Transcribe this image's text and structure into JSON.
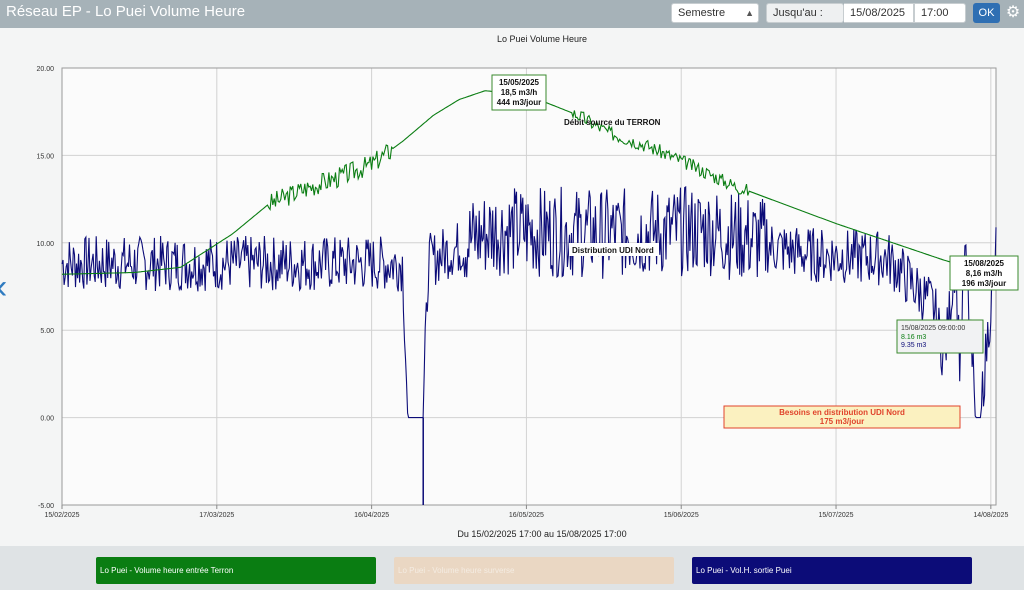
{
  "app": {
    "title": "Réseau EP - Lo Puei Volume Heure"
  },
  "toolbar": {
    "period": "Semestre",
    "until_label": "Jusqu'au :",
    "date": "15/08/2025",
    "time": "17:00",
    "ok_label": "OK",
    "settings_icon": "gear-icon"
  },
  "nav": {
    "back_icon": "chevron-left-icon"
  },
  "chart_data": {
    "type": "line",
    "title": "Lo Puei Volume Heure",
    "xlabel": "Du 15/02/2025 17:00 au 15/08/2025 17:00",
    "ylabel": "",
    "x_start": "2025-02-15",
    "x_end": "2025-08-15",
    "ylim": [
      -5,
      20
    ],
    "y_ticks": [
      "20.00",
      "15.00",
      "10.00",
      "5.00",
      "0.00",
      "-5.00"
    ],
    "y_tick_values": [
      20,
      15,
      10,
      5,
      0,
      -5
    ],
    "x_ticks": [
      {
        "date": "2025-02-15",
        "label": "15/02/2025"
      },
      {
        "date": "2025-03-17",
        "label": "17/03/2025"
      },
      {
        "date": "2025-04-16",
        "label": "16/04/2025"
      },
      {
        "date": "2025-05-16",
        "label": "16/05/2025"
      },
      {
        "date": "2025-06-15",
        "label": "15/06/2025"
      },
      {
        "date": "2025-07-15",
        "label": "15/07/2025"
      },
      {
        "date": "2025-08-14",
        "label": "14/08/2025"
      }
    ],
    "grid": true,
    "series": [
      {
        "name": "Lo Puei - Volume heure entrée Terron",
        "color": "#0a7d12",
        "x": [
          "2025-02-15",
          "2025-03-01",
          "2025-03-10",
          "2025-03-20",
          "2025-03-27",
          "2025-04-03",
          "2025-04-10",
          "2025-04-16",
          "2025-04-22",
          "2025-04-28",
          "2025-05-03",
          "2025-05-08",
          "2025-05-15",
          "2025-05-20",
          "2025-05-26",
          "2025-06-01",
          "2025-06-08",
          "2025-06-15",
          "2025-06-25",
          "2025-07-05",
          "2025-07-15",
          "2025-07-25",
          "2025-08-05",
          "2025-08-15"
        ],
        "y": [
          8.2,
          8.3,
          8.6,
          10.5,
          12.2,
          13.1,
          13.8,
          14.5,
          15.8,
          17.3,
          18.2,
          18.7,
          18.5,
          18.0,
          17.3,
          16.3,
          15.6,
          14.7,
          13.3,
          12.2,
          11.1,
          10.1,
          9.0,
          8.16
        ]
      },
      {
        "name": "Lo Puei - Volume heure surverse",
        "color": "#ead7c3",
        "x": [],
        "y": []
      },
      {
        "name": "Lo Puei - Vol.H. sortie Puei",
        "color": "#0c0c78",
        "x": [
          "2025-02-15",
          "2025-04-22",
          "2025-04-23",
          "2025-04-26",
          "2025-04-27",
          "2025-05-01",
          "2025-05-10",
          "2025-06-01",
          "2025-06-20",
          "2025-07-10",
          "2025-07-25",
          "2025-08-03",
          "2025-08-05",
          "2025-08-07",
          "2025-08-08",
          "2025-08-09",
          "2025-08-11",
          "2025-08-12",
          "2025-08-15"
        ],
        "y": [
          8.5,
          8.5,
          0,
          0,
          8.6,
          9.2,
          10.2,
          10.0,
          10.2,
          9.0,
          8.8,
          6.0,
          3.0,
          8.5,
          3.0,
          9.0,
          0,
          0,
          9.35
        ],
        "oscillation": "daily variation between about 7 and 13 m3/h"
      }
    ],
    "annotations": [
      {
        "series": "Lo Puei - Volume heure entrée Terron",
        "lines": [
          "15/05/2025",
          "18,5 m3/h",
          "444 m3/jour"
        ],
        "style": "green-box"
      },
      {
        "text": "Débit source du TERRON",
        "style": "label"
      },
      {
        "text": "Distribution UDI Nord",
        "style": "label-box"
      },
      {
        "series": "Lo Puei - Volume heure entrée Terron",
        "lines": [
          "15/08/2025",
          "8,16 m3/h",
          "196 m3/jour"
        ],
        "style": "green-box"
      },
      {
        "lines": [
          "Besoins en distribution UDI Nord",
          "175 m3/jour"
        ],
        "style": "red-box"
      }
    ],
    "tooltip": {
      "date": "15/08/2025 09:00:00",
      "values": [
        {
          "text": "8.16 m3",
          "color": "#0a7d12"
        },
        {
          "text": "9.35 m3",
          "color": "#0c0c78"
        }
      ]
    },
    "legend": "bottom"
  },
  "legend_buttons": [
    {
      "label": "Lo Puei - Volume heure entrée Terron"
    },
    {
      "label": "Lo Puei - Volume heure surverse"
    },
    {
      "label": "Lo Puei - Vol.H. sortie Puei"
    }
  ]
}
